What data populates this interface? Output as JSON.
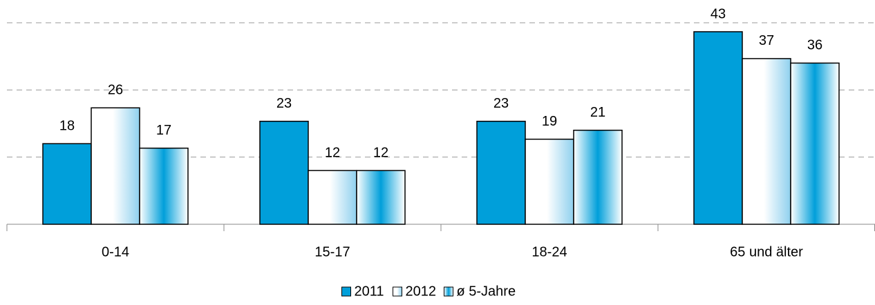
{
  "chart_data": {
    "type": "bar",
    "categories": [
      "0-14",
      "15-17",
      "18-24",
      "65 und älter"
    ],
    "series": [
      {
        "name": "2011",
        "color": "#009fda",
        "fill": "solid",
        "values": [
          18,
          23,
          23,
          43
        ]
      },
      {
        "name": "2012",
        "color": "#009fda",
        "fill": "gradient-edge",
        "values": [
          26,
          12,
          19,
          37
        ]
      },
      {
        "name": "ø 5-Jahre",
        "color": "#009fda",
        "fill": "gradient-center",
        "values": [
          17,
          12,
          21,
          36
        ]
      }
    ],
    "ylim": [
      0,
      45
    ],
    "yticks": [
      0,
      15,
      30,
      45
    ],
    "grid": true,
    "legend": "bottom"
  }
}
